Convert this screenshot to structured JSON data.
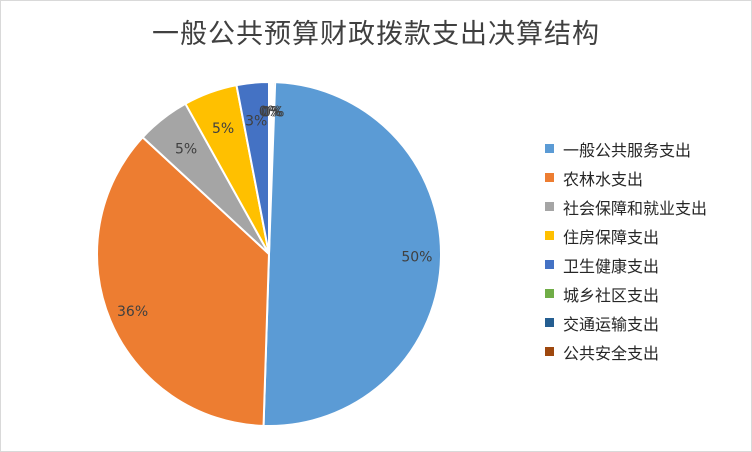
{
  "chart_data": {
    "type": "pie",
    "title": "一般公共预算财政拨款支出决算结构",
    "categories": [
      "一般公共服务支出",
      "农林水支出",
      "社会保障和就业支出",
      "住房保障支出",
      "卫生健康支出",
      "城乡社区支出",
      "交通运输支出",
      "公共安全支出"
    ],
    "values": [
      50,
      36,
      5,
      5,
      3,
      0,
      0,
      0
    ],
    "labels": [
      "50%",
      "36%",
      "5%",
      "5%",
      "3%",
      "0%",
      "0%",
      "0%"
    ],
    "colors": [
      "#5B9BD5",
      "#ED7D31",
      "#A5A5A5",
      "#FFC000",
      "#4472C4",
      "#70AD47",
      "#255E91",
      "#9E480E"
    ],
    "legend_position": "right"
  }
}
